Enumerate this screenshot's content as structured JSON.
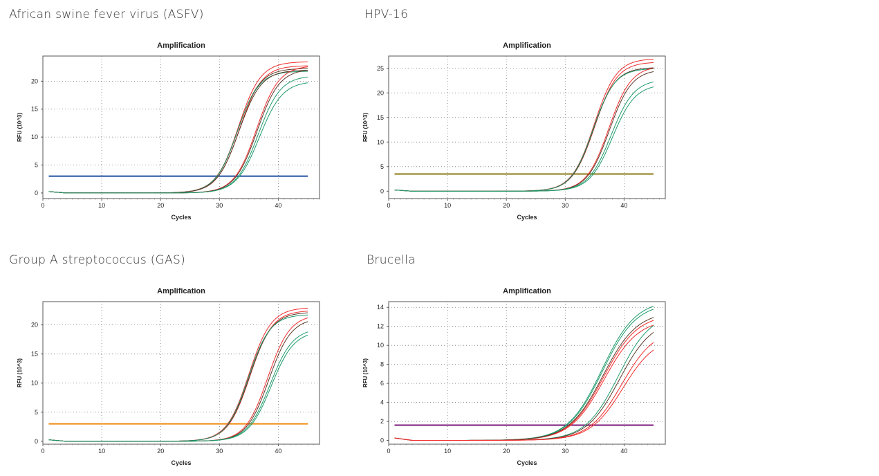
{
  "colors": {
    "red": "#ef2b2b",
    "green": "#1f9a6b",
    "dark": "#5a3a2a"
  },
  "chart_data": [
    {
      "type": "line",
      "panel_label": "African swine fever virus (ASFV)",
      "title": "Amplification",
      "xlabel": "Cycles",
      "ylabel": "RFU (10^3)",
      "xlim": [
        0,
        47
      ],
      "ylim": [
        -1,
        24.5
      ],
      "xticks": [
        0,
        10,
        20,
        30,
        40
      ],
      "yticks": [
        0,
        5,
        10,
        15,
        20
      ],
      "grid": true,
      "threshold": {
        "value": 3,
        "color": "#1f4fa0"
      },
      "series": [
        {
          "group": "early",
          "color": "red",
          "plateau": 23.5,
          "midpoint": 33.2,
          "slope": 1.9
        },
        {
          "group": "early",
          "color": "red",
          "plateau": 22.8,
          "midpoint": 33.4,
          "slope": 1.9
        },
        {
          "group": "early",
          "color": "dark",
          "plateau": 22.3,
          "midpoint": 33.1,
          "slope": 1.9
        },
        {
          "group": "early",
          "color": "green",
          "plateau": 21.8,
          "midpoint": 33.0,
          "slope": 1.85
        },
        {
          "group": "early",
          "color": "dark",
          "plateau": 22.0,
          "midpoint": 33.3,
          "slope": 1.9
        },
        {
          "group": "late",
          "color": "red",
          "plateau": 22.8,
          "midpoint": 36.3,
          "slope": 1.9
        },
        {
          "group": "late",
          "color": "green",
          "plateau": 21.0,
          "midpoint": 36.6,
          "slope": 1.9
        },
        {
          "group": "late",
          "color": "dark",
          "plateau": 22.2,
          "midpoint": 36.4,
          "slope": 1.9
        },
        {
          "group": "late",
          "color": "green",
          "plateau": 20.0,
          "midpoint": 36.8,
          "slope": 1.95
        }
      ]
    },
    {
      "type": "line",
      "panel_label": "HPV-16",
      "title": "Amplification",
      "xlabel": "Cycles",
      "ylabel": "RFU (10^3)",
      "xlim": [
        0,
        47
      ],
      "ylim": [
        -1.5,
        27.5
      ],
      "xticks": [
        0,
        10,
        20,
        30,
        40
      ],
      "yticks": [
        0,
        5,
        10,
        15,
        20,
        25
      ],
      "grid": true,
      "threshold": {
        "value": 3.5,
        "color": "#8a7a10"
      },
      "series": [
        {
          "group": "early",
          "color": "red",
          "plateau": 27.0,
          "midpoint": 34.9,
          "slope": 1.9
        },
        {
          "group": "early",
          "color": "red",
          "plateau": 26.3,
          "midpoint": 35.0,
          "slope": 1.9
        },
        {
          "group": "early",
          "color": "dark",
          "plateau": 25.2,
          "midpoint": 34.8,
          "slope": 1.85
        },
        {
          "group": "early",
          "color": "green",
          "plateau": 25.0,
          "midpoint": 34.7,
          "slope": 1.85
        },
        {
          "group": "late",
          "color": "red",
          "plateau": 25.5,
          "midpoint": 37.4,
          "slope": 1.9
        },
        {
          "group": "late",
          "color": "dark",
          "plateau": 24.8,
          "midpoint": 37.5,
          "slope": 1.9
        },
        {
          "group": "late",
          "color": "green",
          "plateau": 22.8,
          "midpoint": 37.8,
          "slope": 1.95
        },
        {
          "group": "late",
          "color": "green",
          "plateau": 21.8,
          "midpoint": 38.0,
          "slope": 1.95
        }
      ]
    },
    {
      "type": "line",
      "panel_label": "Group A streptococcus (GAS)",
      "title": "Amplification",
      "xlabel": "Cycles",
      "ylabel": "RFU (10^3)",
      "xlim": [
        0,
        47
      ],
      "ylim": [
        -0.5,
        24.0
      ],
      "xticks": [
        0,
        10,
        20,
        30,
        40
      ],
      "yticks": [
        0,
        5,
        10,
        15,
        20
      ],
      "grid": true,
      "threshold": {
        "value": 3,
        "color": "#f08a10"
      },
      "series": [
        {
          "group": "early",
          "color": "red",
          "plateau": 23.0,
          "midpoint": 35.0,
          "slope": 1.9
        },
        {
          "group": "early",
          "color": "red",
          "plateau": 22.5,
          "midpoint": 35.2,
          "slope": 1.9
        },
        {
          "group": "early",
          "color": "dark",
          "plateau": 22.2,
          "midpoint": 35.1,
          "slope": 1.9
        },
        {
          "group": "early",
          "color": "green",
          "plateau": 21.8,
          "midpoint": 34.9,
          "slope": 1.85
        },
        {
          "group": "late",
          "color": "red",
          "plateau": 21.8,
          "midpoint": 38.2,
          "slope": 1.9
        },
        {
          "group": "late",
          "color": "dark",
          "plateau": 21.2,
          "midpoint": 38.4,
          "slope": 1.9
        },
        {
          "group": "late",
          "color": "green",
          "plateau": 19.5,
          "midpoint": 38.6,
          "slope": 1.95
        },
        {
          "group": "late",
          "color": "green",
          "plateau": 19.0,
          "midpoint": 38.8,
          "slope": 1.95
        }
      ]
    },
    {
      "type": "line",
      "panel_label": "Brucella",
      "title": "Amplification",
      "xlabel": "Cycles",
      "ylabel": "RFU (10^3)",
      "xlim": [
        0,
        47
      ],
      "ylim": [
        -0.4,
        14.6
      ],
      "xticks": [
        0,
        10,
        20,
        30,
        40
      ],
      "yticks": [
        0,
        2,
        4,
        6,
        8,
        10,
        12,
        14
      ],
      "grid": true,
      "threshold": {
        "value": 1.6,
        "color": "#7a1a7a"
      },
      "series": [
        {
          "group": "early",
          "color": "green",
          "plateau": 14.8,
          "midpoint": 36.2,
          "slope": 2.9
        },
        {
          "group": "early",
          "color": "green",
          "plateau": 14.5,
          "midpoint": 36.3,
          "slope": 2.9
        },
        {
          "group": "early",
          "color": "red",
          "plateau": 13.3,
          "midpoint": 36.5,
          "slope": 2.9
        },
        {
          "group": "early",
          "color": "red",
          "plateau": 12.8,
          "midpoint": 36.6,
          "slope": 2.9
        },
        {
          "group": "early",
          "color": "dark",
          "plateau": 13.6,
          "midpoint": 36.4,
          "slope": 2.9
        },
        {
          "group": "late",
          "color": "green",
          "plateau": 13.5,
          "midpoint": 39.0,
          "slope": 2.8
        },
        {
          "group": "late",
          "color": "dark",
          "plateau": 12.8,
          "midpoint": 39.2,
          "slope": 2.8
        },
        {
          "group": "late",
          "color": "red",
          "plateau": 11.8,
          "midpoint": 39.6,
          "slope": 2.8
        },
        {
          "group": "late",
          "color": "red",
          "plateau": 11.0,
          "midpoint": 39.8,
          "slope": 2.8
        }
      ]
    }
  ]
}
